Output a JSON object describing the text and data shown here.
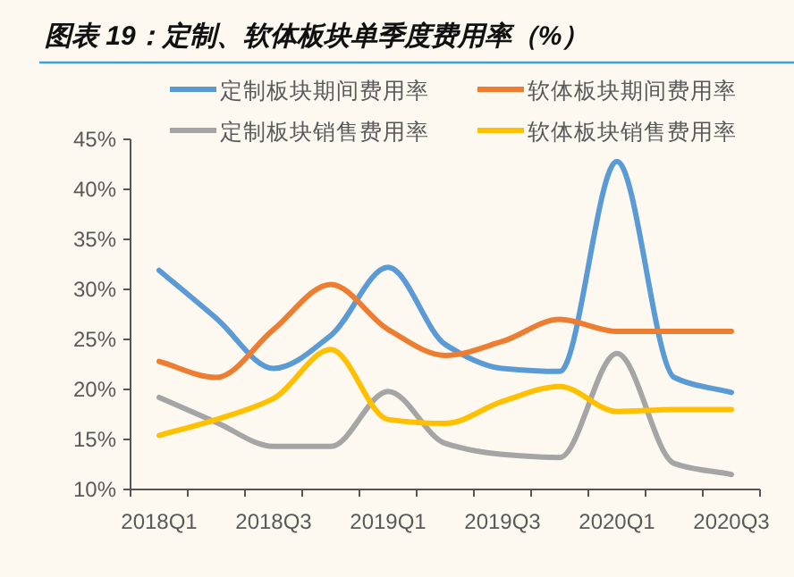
{
  "chart_data": {
    "type": "line",
    "title": "图表 19：定制、软体板块单季度费用率（%）",
    "categories": [
      "2018Q1",
      null,
      "2018Q3",
      null,
      "2019Q1",
      null,
      "2019Q3",
      null,
      "2020Q1",
      null,
      "2020Q3"
    ],
    "series": [
      {
        "name": "定制板块期间费用率",
        "color": "#5b9bd5",
        "values": [
          31.9,
          27.1,
          22.1,
          25.4,
          32.2,
          24.5,
          22.1,
          21.8,
          42.8,
          21.2,
          19.7
        ]
      },
      {
        "name": "软体板块期间费用率",
        "color": "#ed7d31",
        "values": [
          22.8,
          21.2,
          26.0,
          30.5,
          26.0,
          23.4,
          24.8,
          27.0,
          25.8,
          25.8,
          25.8
        ]
      },
      {
        "name": "定制板块销售费用率",
        "color": "#a5a5a5",
        "values": [
          19.2,
          16.7,
          14.3,
          14.3,
          19.8,
          14.6,
          13.5,
          13.2,
          23.6,
          12.6,
          11.5
        ]
      },
      {
        "name": "软体板块销售费用率",
        "color": "#ffc000",
        "values": [
          15.4,
          17.0,
          19.1,
          24.0,
          17.0,
          16.6,
          18.8,
          20.3,
          17.8,
          18.0,
          18.0
        ]
      }
    ],
    "ylim": [
      10,
      45
    ],
    "yticks": [
      {
        "value": 10,
        "label": "10%"
      },
      {
        "value": 15,
        "label": "15%"
      },
      {
        "value": 20,
        "label": "20%"
      },
      {
        "value": 25,
        "label": "25%"
      },
      {
        "value": 30,
        "label": "30%"
      },
      {
        "value": 35,
        "label": "35%"
      },
      {
        "value": 40,
        "label": "40%"
      },
      {
        "value": 45,
        "label": "45%"
      }
    ],
    "grid": false,
    "legend": "top"
  }
}
